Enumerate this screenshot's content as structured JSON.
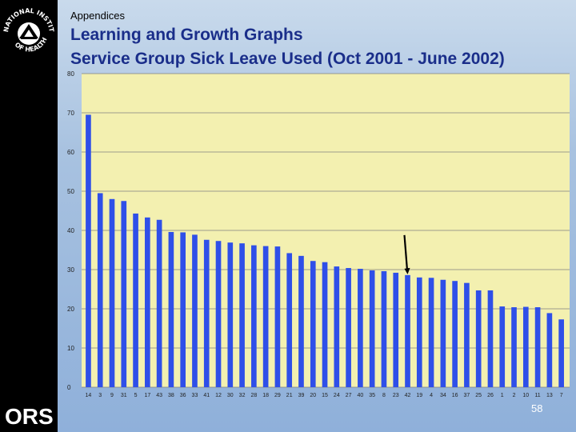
{
  "header": {
    "section": "Appendices",
    "title_line1": "Learning and Growth Graphs",
    "title_line2": "Service Group Sick Leave Used (Oct 2001 - June 2002)"
  },
  "footer": {
    "page_number": "58"
  },
  "logos": {
    "left_top": "nih-logo",
    "left_bottom": "ORS"
  },
  "colors": {
    "bar": "#2f4fe8",
    "plot_bg": "#f3f0b0",
    "gridline": "#7f7f7f",
    "title": "#1a2e8a",
    "arrow": "#000000"
  },
  "chart_data": {
    "type": "bar",
    "title": "Service Group Sick Leave Used (Oct 2001 - June 2002)",
    "xlabel": "",
    "ylabel": "",
    "ylim": [
      0,
      80
    ],
    "yticks": [
      0,
      10,
      20,
      30,
      40,
      50,
      60,
      70,
      80
    ],
    "grid": true,
    "categories": [
      "14",
      "3",
      "9",
      "31",
      "5",
      "17",
      "43",
      "38",
      "36",
      "33",
      "41",
      "12",
      "30",
      "32",
      "28",
      "18",
      "29",
      "21",
      "39",
      "20",
      "15",
      "24",
      "27",
      "40",
      "35",
      "8",
      "23",
      "42",
      "19",
      "4",
      "34",
      "16",
      "37",
      "25",
      "26",
      "1",
      "2",
      "10",
      "11",
      "13",
      "7"
    ],
    "values": [
      69.5,
      49.5,
      48,
      47.5,
      44.3,
      43.3,
      42.7,
      39.6,
      39.5,
      38.9,
      37.6,
      37.3,
      36.9,
      36.7,
      36.2,
      36,
      35.9,
      34.2,
      33.5,
      32.2,
      31.9,
      30.8,
      30.4,
      30.2,
      29.8,
      29.6,
      29.2,
      28.6,
      28,
      27.9,
      27.4,
      27.1,
      26.6,
      24.7,
      24.7,
      20.6,
      20.4,
      20.5,
      20.4,
      18.9,
      17.3
    ],
    "annotations": [
      {
        "type": "arrow",
        "target_category": "42"
      }
    ]
  }
}
